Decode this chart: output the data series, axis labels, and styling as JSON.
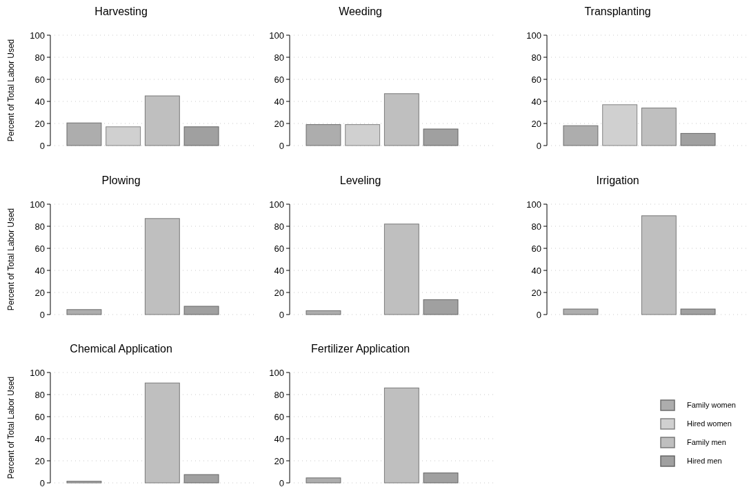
{
  "chart_data": [
    {
      "type": "bar",
      "title": "Harvesting",
      "ylabel": "Percent of Total Labor Used",
      "categories": [
        null
      ],
      "ylim": [
        0,
        100
      ],
      "yticks": [
        0,
        20,
        40,
        60,
        80,
        100
      ],
      "grid": "y",
      "series": [
        {
          "color": "#adadad",
          "values": [
            20.5
          ]
        },
        {
          "color": "#d0d0d0",
          "values": [
            17
          ]
        },
        {
          "color": "#bfbfbf",
          "values": [
            45
          ]
        },
        {
          "color": "#a0a0a0",
          "values": [
            17
          ]
        }
      ]
    },
    {
      "type": "bar",
      "title": "Weeding",
      "categories": [
        null
      ],
      "ylim": [
        0,
        100
      ],
      "yticks": [
        0,
        20,
        40,
        60,
        80,
        100
      ],
      "grid": "y",
      "series": [
        {
          "color": "#adadad",
          "values": [
            19
          ]
        },
        {
          "color": "#d0d0d0",
          "values": [
            19
          ]
        },
        {
          "color": "#bfbfbf",
          "values": [
            47
          ]
        },
        {
          "color": "#a0a0a0",
          "values": [
            15
          ]
        }
      ]
    },
    {
      "type": "bar",
      "title": "Transplanting",
      "categories": [
        null
      ],
      "ylim": [
        0,
        100
      ],
      "yticks": [
        0,
        20,
        40,
        60,
        80,
        100
      ],
      "grid": "y",
      "series": [
        {
          "color": "#adadad",
          "values": [
            18
          ]
        },
        {
          "color": "#d0d0d0",
          "values": [
            37
          ]
        },
        {
          "color": "#bfbfbf",
          "values": [
            34
          ]
        },
        {
          "color": "#a0a0a0",
          "values": [
            11
          ]
        }
      ]
    },
    {
      "type": "bar",
      "title": "Plowing",
      "ylabel": "Percent of Total Labor Used",
      "categories": [
        null
      ],
      "ylim": [
        0,
        100
      ],
      "yticks": [
        0,
        20,
        40,
        60,
        80,
        100
      ],
      "grid": "y",
      "series": [
        {
          "color": "#adadad",
          "values": [
            4.5
          ]
        },
        {
          "values": [
            null
          ]
        },
        {
          "color": "#bfbfbf",
          "values": [
            87
          ]
        },
        {
          "color": "#a0a0a0",
          "values": [
            7.5
          ]
        }
      ]
    },
    {
      "type": "bar",
      "title": "Leveling",
      "categories": [
        null
      ],
      "ylim": [
        0,
        100
      ],
      "yticks": [
        0,
        20,
        40,
        60,
        80,
        100
      ],
      "grid": "y",
      "series": [
        {
          "color": "#adadad",
          "values": [
            3.5
          ]
        },
        {
          "values": [
            null
          ]
        },
        {
          "color": "#bfbfbf",
          "values": [
            82
          ]
        },
        {
          "color": "#a0a0a0",
          "values": [
            13.5
          ]
        }
      ]
    },
    {
      "type": "bar",
      "title": "Irrigation",
      "categories": [
        null
      ],
      "ylim": [
        0,
        100
      ],
      "yticks": [
        0,
        20,
        40,
        60,
        80,
        100
      ],
      "grid": "y",
      "series": [
        {
          "color": "#adadad",
          "values": [
            5
          ]
        },
        {
          "values": [
            null
          ]
        },
        {
          "color": "#bfbfbf",
          "values": [
            89.5
          ]
        },
        {
          "color": "#a0a0a0",
          "values": [
            5
          ]
        }
      ]
    },
    {
      "type": "bar",
      "title": "Chemical Application",
      "ylabel": "Percent of Total Labor Used",
      "categories": [
        null
      ],
      "ylim": [
        0,
        100
      ],
      "yticks": [
        0,
        20,
        40,
        60,
        80,
        100
      ],
      "grid": "y",
      "series": [
        {
          "color": "#adadad",
          "values": [
            1.5
          ]
        },
        {
          "values": [
            null
          ]
        },
        {
          "color": "#bfbfbf",
          "values": [
            90.5
          ]
        },
        {
          "color": "#a0a0a0",
          "values": [
            7.5
          ]
        }
      ]
    },
    {
      "type": "bar",
      "title": "Fertilizer Application",
      "categories": [
        null
      ],
      "ylim": [
        0,
        100
      ],
      "yticks": [
        0,
        20,
        40,
        60,
        80,
        100
      ],
      "grid": "y",
      "legend": "right",
      "series": [
        {
          "name": "Family women",
          "color": "#adadad",
          "values": [
            4.5
          ]
        },
        {
          "name": "Hired women",
          "color": "#d0d0d0",
          "values": [
            null
          ]
        },
        {
          "name": "Family men",
          "color": "#bfbfbf",
          "values": [
            86
          ]
        },
        {
          "name": "Hired men",
          "color": "#a0a0a0",
          "values": [
            9
          ]
        }
      ]
    }
  ]
}
